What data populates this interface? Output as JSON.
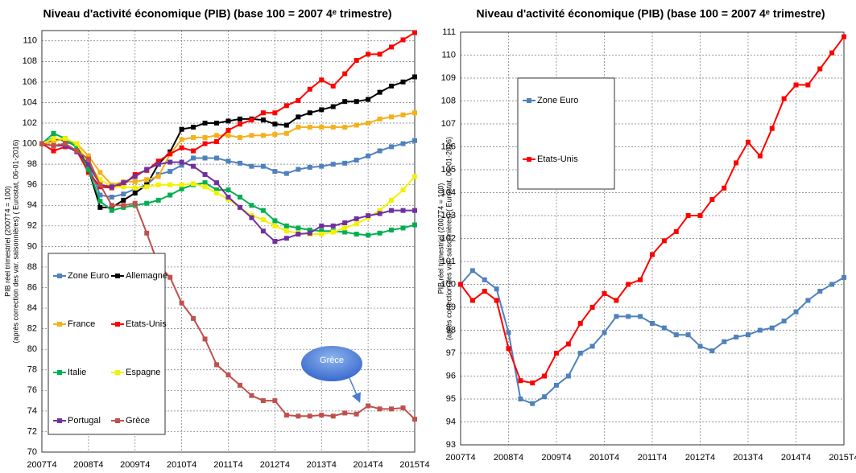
{
  "chart_data": [
    {
      "type": "line",
      "title": "Niveau d'activité économique (PIB)  (base 100 = 2007 4ᵉ trimestre)",
      "ylabel": [
        "PIB réel trimestriel (2007T4 = 100)",
        "(après correction des var. saisonnières) ( Eurostat, 06-01-2016)"
      ],
      "categories": [
        "2007T4",
        null,
        null,
        null,
        "2008T4",
        null,
        null,
        null,
        "2009T4",
        null,
        null,
        null,
        "2010T4",
        null,
        null,
        null,
        "2011T4",
        null,
        null,
        null,
        "2012T4",
        null,
        null,
        null,
        "2013T4",
        null,
        null,
        null,
        "2014T4",
        null,
        null,
        null,
        "2015T4"
      ],
      "ylim": [
        70,
        111
      ],
      "yticks": [
        70,
        72,
        74,
        76,
        78,
        80,
        82,
        84,
        86,
        88,
        90,
        92,
        94,
        96,
        98,
        100,
        102,
        104,
        106,
        108,
        110
      ],
      "grid": true,
      "legend": "lower left",
      "annotation": "Grèce",
      "series": [
        {
          "name": "Zone Euro",
          "color": "#4f81bd",
          "values": [
            100,
            100.6,
            100.2,
            99.8,
            97.9,
            95,
            94.8,
            95.1,
            95.6,
            96,
            97,
            97.3,
            97.9,
            98.6,
            98.6,
            98.6,
            98.3,
            98.1,
            97.8,
            97.8,
            97.3,
            97.1,
            97.5,
            97.7,
            97.8,
            98,
            98.1,
            98.4,
            98.8,
            99.3,
            99.7,
            100,
            100.3
          ]
        },
        {
          "name": "Allemagne",
          "color": "#000000",
          "values": [
            100,
            100.4,
            100.4,
            100,
            97.5,
            93.8,
            93.8,
            94.5,
            95.2,
            96,
            98,
            99.2,
            101.4,
            101.6,
            102,
            102,
            102.2,
            102.4,
            102.4,
            102.3,
            101.9,
            101.8,
            102.6,
            103,
            103.3,
            103.6,
            104.1,
            104.1,
            104.3,
            105,
            105.6,
            106,
            106.5
          ]
        },
        {
          "name": "France",
          "color": "#f5b01a",
          "values": [
            100,
            100.2,
            100.5,
            100,
            98.8,
            97.2,
            96,
            96.3,
            96.3,
            96.5,
            96.8,
            99,
            100.4,
            100.6,
            100.6,
            100.8,
            100.8,
            100.6,
            100.8,
            100.8,
            100.9,
            101,
            101.6,
            101.6,
            101.6,
            101.6,
            101.6,
            101.8,
            102,
            102.4,
            102.6,
            102.8,
            103
          ]
        },
        {
          "name": "Etats-Unis",
          "color": "#ff0000",
          "values": [
            100,
            99.3,
            99.7,
            99.3,
            97.2,
            95.8,
            95.7,
            96,
            97,
            97.4,
            98.3,
            99,
            99.6,
            99.3,
            100,
            100.2,
            101.3,
            101.9,
            102.3,
            103,
            103,
            103.7,
            104.2,
            105.3,
            106.2,
            105.6,
            106.8,
            108.1,
            108.7,
            108.7,
            109.4,
            110.1,
            110.8
          ]
        },
        {
          "name": "Italie",
          "color": "#00b050",
          "values": [
            100,
            101,
            100.5,
            99.6,
            97.5,
            94.4,
            93.5,
            93.8,
            94,
            94.2,
            94.5,
            95,
            95.6,
            96,
            96.2,
            95.5,
            95.5,
            94.8,
            94,
            93.5,
            92.5,
            92,
            91.8,
            91.6,
            91.5,
            91.5,
            91.4,
            91.2,
            91.1,
            91.3,
            91.6,
            91.8,
            92.1
          ]
        },
        {
          "name": "Espagne",
          "color": "#f2f200",
          "values": [
            100,
            100.5,
            100.5,
            100,
            98,
            96.5,
            95.8,
            95.8,
            95.7,
            95.8,
            96,
            96,
            96,
            96.1,
            95.8,
            95.2,
            94.6,
            93.8,
            93,
            92.6,
            92,
            91.5,
            91.3,
            91.2,
            91.2,
            91.4,
            91.8,
            92.2,
            92.8,
            93.5,
            94.5,
            95.5,
            96.8
          ]
        },
        {
          "name": "Portugal",
          "color": "#7030a0",
          "values": [
            100,
            99.8,
            99.8,
            99.2,
            98,
            96,
            95.8,
            96.2,
            96.8,
            97.5,
            98,
            98.2,
            98.2,
            97.8,
            97,
            96.2,
            94.8,
            93.8,
            92.8,
            91.5,
            90.5,
            90.8,
            91.2,
            91.3,
            92,
            92,
            92.3,
            92.7,
            93,
            93.2,
            93.5,
            93.5,
            93.5
          ]
        },
        {
          "name": "Grèce",
          "color": "#c0504d",
          "values": [
            100,
            99.8,
            100,
            99.3,
            98.5,
            96,
            94,
            94,
            94.2,
            91.3,
            88.2,
            87,
            84.5,
            83,
            81,
            78.5,
            77.5,
            76.5,
            75.5,
            75,
            75,
            73.6,
            73.5,
            73.5,
            73.6,
            73.5,
            73.8,
            73.7,
            74.5,
            74.2,
            74.2,
            74.3,
            73.2
          ]
        }
      ]
    },
    {
      "type": "line",
      "title": "Niveau d'activité économique (PIB)  (base 100 = 2007 4ᵉ trimestre)",
      "ylabel": [
        "PIB réel trimestriel (2007T4 = 100)",
        "(après correction des var. saisonnières) ( Eurostat, 06-01-2016)"
      ],
      "categories": [
        "2007T4",
        null,
        null,
        null,
        "2008T4",
        null,
        null,
        null,
        "2009T4",
        null,
        null,
        null,
        "2010T4",
        null,
        null,
        null,
        "2011T4",
        null,
        null,
        null,
        "2012T4",
        null,
        null,
        null,
        "2013T4",
        null,
        null,
        null,
        "2014T4",
        null,
        null,
        null,
        "2015T4"
      ],
      "ylim": [
        93,
        111
      ],
      "yticks": [
        93,
        94,
        95,
        96,
        97,
        98,
        99,
        100,
        101,
        102,
        103,
        104,
        105,
        106,
        107,
        108,
        109,
        110,
        111
      ],
      "grid": true,
      "legend": "upper left",
      "series": [
        {
          "name": "Zone Euro",
          "color": "#4f81bd",
          "values": [
            100,
            100.6,
            100.2,
            99.8,
            97.9,
            95,
            94.8,
            95.1,
            95.6,
            96,
            97,
            97.3,
            97.9,
            98.6,
            98.6,
            98.6,
            98.3,
            98.1,
            97.8,
            97.8,
            97.3,
            97.1,
            97.5,
            97.7,
            97.8,
            98,
            98.1,
            98.4,
            98.8,
            99.3,
            99.7,
            100,
            100.3
          ]
        },
        {
          "name": "Etats-Unis",
          "color": "#ff0000",
          "values": [
            100,
            99.3,
            99.7,
            99.3,
            97.2,
            95.8,
            95.7,
            96,
            97,
            97.4,
            98.3,
            99,
            99.6,
            99.3,
            100,
            100.2,
            101.3,
            101.9,
            102.3,
            103,
            103,
            103.7,
            104.2,
            105.3,
            106.2,
            105.6,
            106.8,
            108.1,
            108.7,
            108.7,
            109.4,
            110.1,
            110.8
          ]
        }
      ]
    }
  ]
}
